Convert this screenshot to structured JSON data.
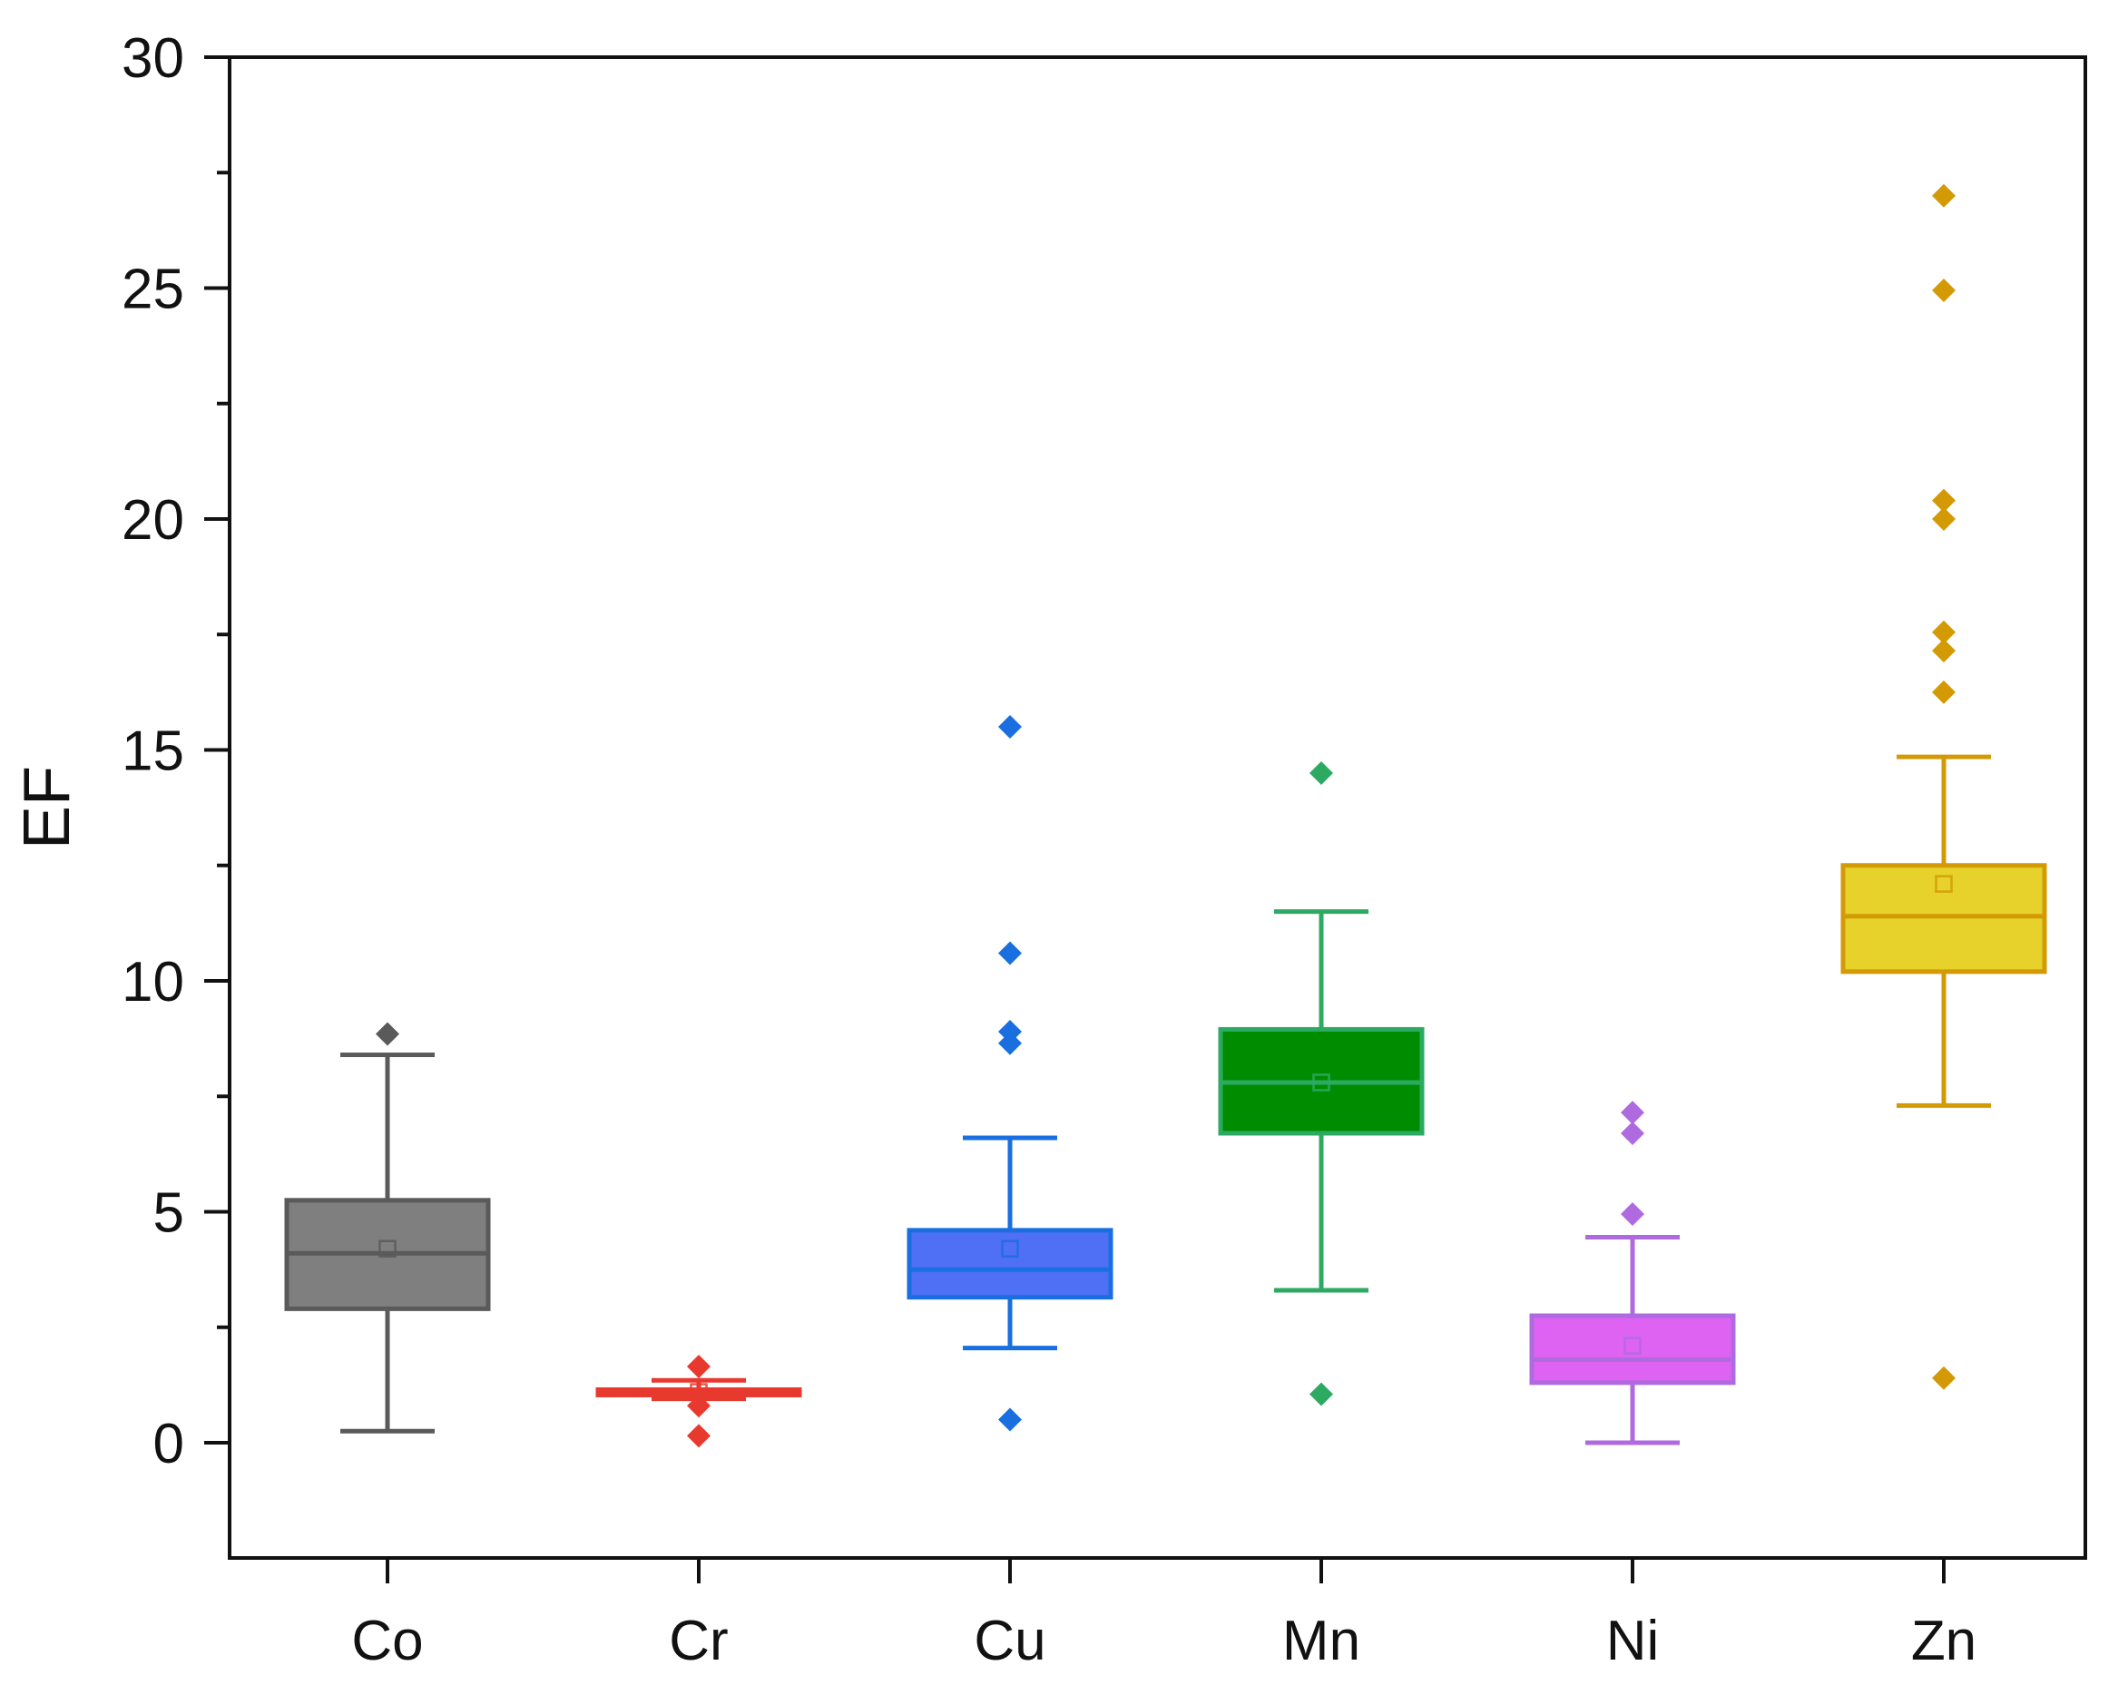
{
  "chart_data": {
    "type": "box",
    "title": "",
    "xlabel": "",
    "ylabel": "EF",
    "ylim": [
      -2.5,
      30
    ],
    "yticks": [
      0,
      5,
      10,
      15,
      20,
      25,
      30
    ],
    "categories": [
      "Co",
      "Cr",
      "Cu",
      "Mn",
      "Ni",
      "Zn"
    ],
    "boxes": [
      {
        "name": "Co",
        "whisker_low": 0.25,
        "q1": 2.9,
        "median": 4.1,
        "q3": 5.25,
        "whisker_high": 8.4,
        "mean": 4.2,
        "outliers": [
          8.85
        ],
        "color": "#5a5a5a",
        "fill": "#7f7f7f"
      },
      {
        "name": "Cr",
        "whisker_low": 0.95,
        "q1": 1.05,
        "median": 1.1,
        "q3": 1.15,
        "whisker_high": 1.35,
        "mean": 1.1,
        "outliers": [
          1.65,
          0.8,
          0.15
        ],
        "color": "#e8392f",
        "fill": "#f04a40"
      },
      {
        "name": "Cu",
        "whisker_low": 2.05,
        "q1": 3.15,
        "median": 3.75,
        "q3": 4.6,
        "whisker_high": 6.6,
        "mean": 4.2,
        "outliers": [
          15.5,
          10.6,
          8.9,
          8.65,
          0.5
        ],
        "color": "#1a6fe0",
        "fill": "#4f6ff5"
      },
      {
        "name": "Mn",
        "whisker_low": 3.3,
        "q1": 6.7,
        "median": 7.8,
        "q3": 8.95,
        "whisker_high": 11.5,
        "mean": 7.8,
        "outliers": [
          14.5,
          1.05
        ],
        "color": "#2daa62",
        "fill": "#008c00"
      },
      {
        "name": "Ni",
        "whisker_low": 0.0,
        "q1": 1.3,
        "median": 1.8,
        "q3": 2.75,
        "whisker_high": 4.45,
        "mean": 2.1,
        "outliers": [
          7.15,
          6.7,
          4.95
        ],
        "color": "#b06ae0",
        "fill": "#de63f3"
      },
      {
        "name": "Zn",
        "whisker_low": 7.3,
        "q1": 10.2,
        "median": 11.4,
        "q3": 12.5,
        "whisker_high": 14.85,
        "mean": 12.1,
        "outliers": [
          27.0,
          24.95,
          20.4,
          20.0,
          17.55,
          17.15,
          16.25,
          1.4
        ],
        "color": "#d39a06",
        "fill": "#e6d22a"
      }
    ]
  }
}
